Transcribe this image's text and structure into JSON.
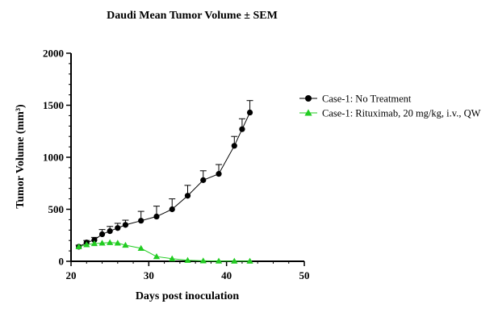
{
  "chart_data": {
    "type": "line",
    "title": "Daudi Mean Tumor Volume ± SEM",
    "xlabel": "Days post inoculation",
    "ylabel": "Tumor Volume (mm³)",
    "xlim": [
      20,
      50
    ],
    "ylim": [
      0,
      2000
    ],
    "xticks": [
      20,
      30,
      40,
      50
    ],
    "yticks": [
      0,
      500,
      1000,
      1500,
      2000
    ],
    "legend_position": "right",
    "grid": false,
    "series": [
      {
        "name": "Case-1: No Treatment",
        "color": "#000000",
        "marker": "circle",
        "x": [
          21,
          22,
          23,
          24,
          25,
          26,
          27,
          29,
          31,
          33,
          35,
          37,
          39,
          41,
          42,
          43
        ],
        "y": [
          140,
          180,
          205,
          260,
          290,
          320,
          350,
          390,
          430,
          500,
          630,
          780,
          840,
          1110,
          1270,
          1430
        ],
        "err": [
          15,
          20,
          25,
          45,
          45,
          45,
          45,
          90,
          100,
          100,
          100,
          90,
          90,
          90,
          100,
          115
        ]
      },
      {
        "name": "Case-1: Rituximab, 20 mg/kg, i.v., QW",
        "color": "#22cc22",
        "marker": "triangle",
        "x": [
          21,
          22,
          23,
          24,
          25,
          26,
          27,
          29,
          31,
          33,
          35,
          37,
          39,
          41,
          43
        ],
        "y": [
          140,
          160,
          170,
          175,
          180,
          175,
          155,
          125,
          45,
          25,
          10,
          5,
          3,
          2,
          2
        ]
      }
    ]
  }
}
